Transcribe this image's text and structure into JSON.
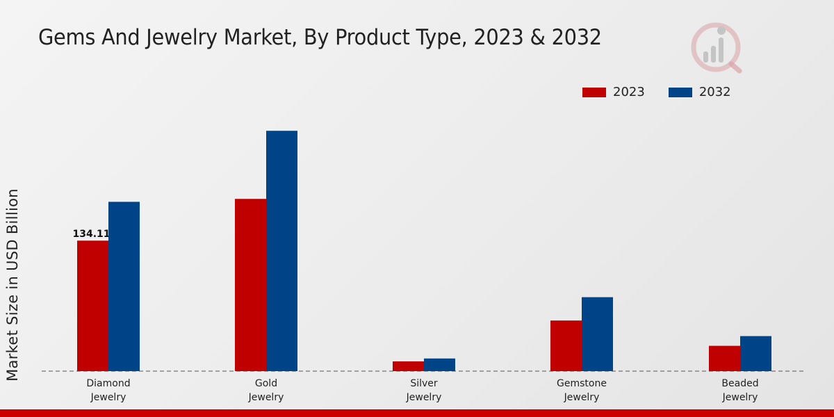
{
  "header": {
    "title": "Gems And Jewelry Market, By Product Type, 2023 & 2032"
  },
  "logo": {
    "icon": "market-research-logo-icon",
    "color": "#c0262d"
  },
  "colors": {
    "series_2023": "#c00000",
    "series_2032": "#004488",
    "accent_bar": "#cc0000",
    "baseline": "#555555"
  },
  "chart_data": {
    "type": "bar",
    "title": "Gems And Jewelry Market, By Product Type, 2023 & 2032",
    "xlabel": "",
    "ylabel": "Market Size in USD Billion",
    "ylim": [
      0,
      280
    ],
    "grid": false,
    "legend_position": "top-right",
    "categories": [
      [
        "Diamond",
        "Jewelry"
      ],
      [
        "Gold",
        "Jewelry"
      ],
      [
        "Silver",
        "Jewelry"
      ],
      [
        "Gemstone",
        "Jewelry"
      ],
      [
        "Beaded",
        "Jewelry"
      ]
    ],
    "series": [
      {
        "name": "2023",
        "color": "#c00000",
        "values": [
          134.11,
          177.0,
          10.0,
          52.0,
          26.0
        ],
        "data_labels": [
          "134.11",
          null,
          null,
          null,
          null
        ]
      },
      {
        "name": "2032",
        "color": "#004488",
        "values": [
          174.0,
          247.0,
          13.0,
          76.0,
          36.0
        ],
        "data_labels": [
          null,
          null,
          null,
          null,
          null
        ]
      }
    ]
  }
}
